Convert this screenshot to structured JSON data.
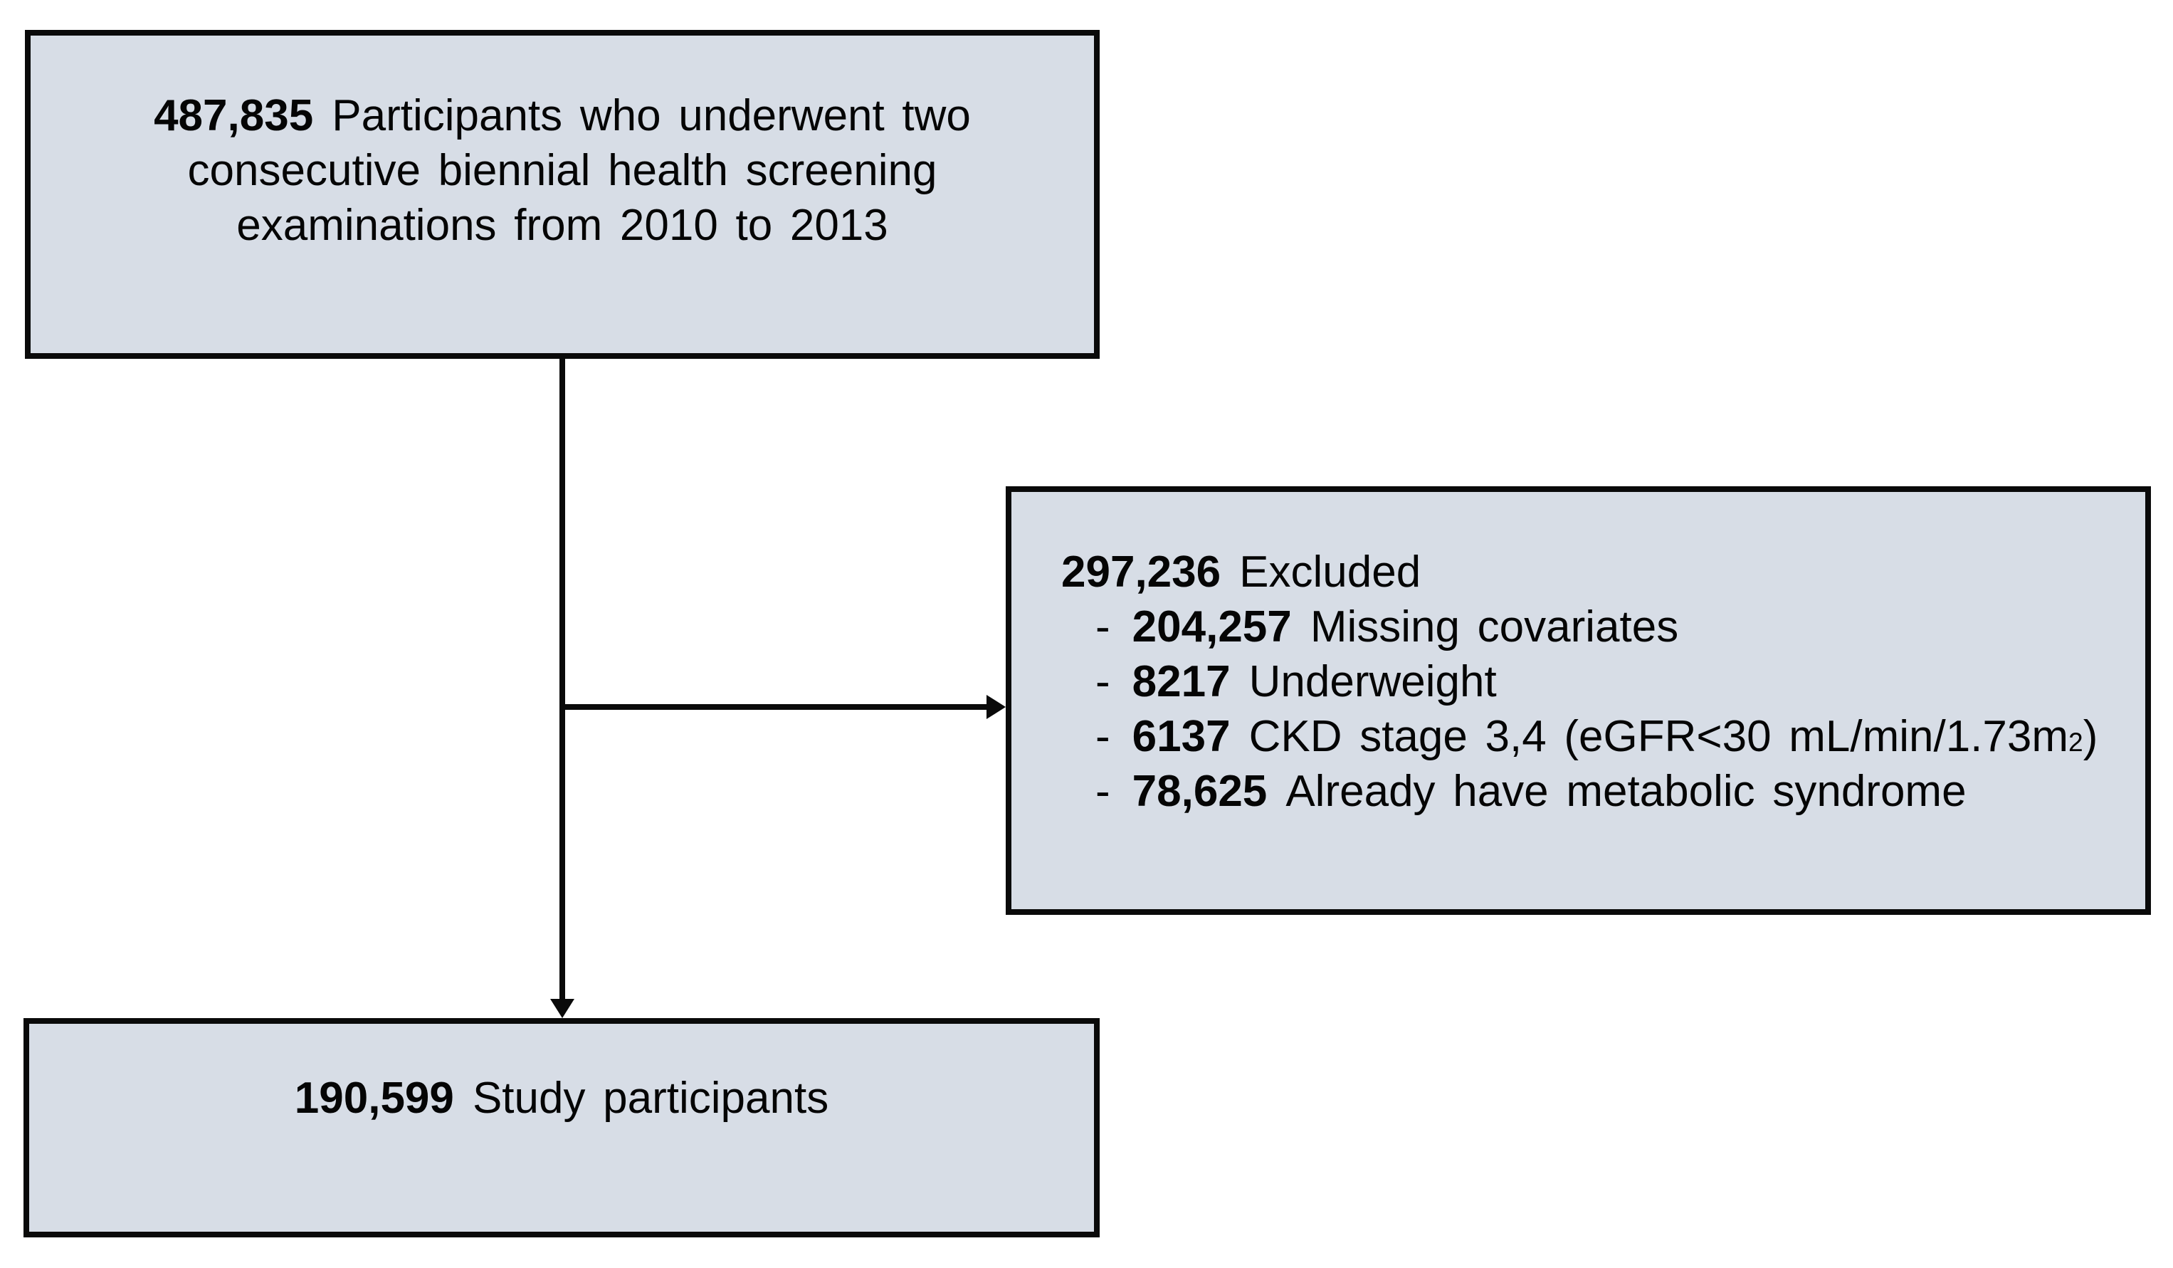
{
  "diagram": {
    "colors": {
      "box_fill": "#d7dde6",
      "box_border": "#0a0a0a",
      "connector": "#0a0a0a",
      "text": "#050505",
      "background": "#ffffff"
    },
    "top_box": {
      "count": "487,835",
      "line1_rest": "Participants who underwent two",
      "line2": "consecutive biennial health screening",
      "line3": "examinations from 2010 to 2013"
    },
    "excluded_box": {
      "count": "297,236",
      "label": "Excluded",
      "items": [
        {
          "dash": "-",
          "count": "204,257",
          "label": "Missing covariates",
          "sup": "",
          "suffix": ""
        },
        {
          "dash": "-",
          "count": "8217",
          "label": "Underweight",
          "sup": "",
          "suffix": ""
        },
        {
          "dash": "-",
          "count": "6137",
          "label": "CKD stage 3,4 (eGFR<30 mL/min/1.73m",
          "sup": "2",
          "suffix": ")"
        },
        {
          "dash": "-",
          "count": "78,625",
          "label": "Already have metabolic syndrome",
          "sup": "",
          "suffix": ""
        }
      ]
    },
    "result_box": {
      "count": "190,599",
      "label": "Study participants"
    }
  }
}
